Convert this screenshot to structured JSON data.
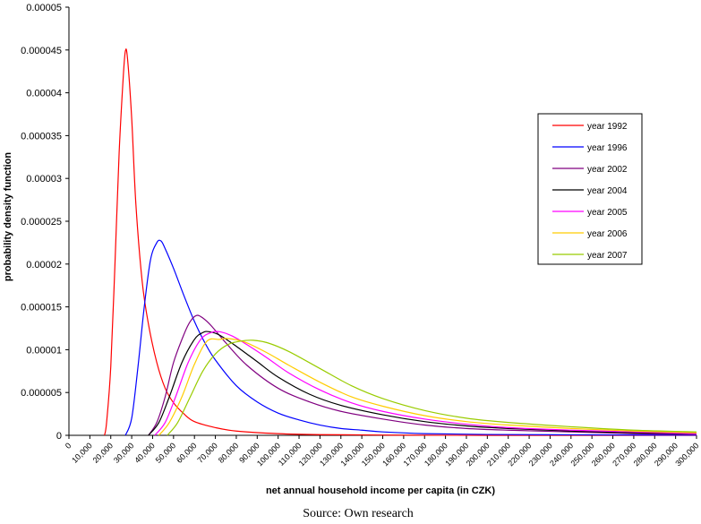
{
  "chart_data": {
    "type": "line",
    "title": "",
    "xlabel": "net annual household income per capita (in CZK)",
    "ylabel": "probability density function",
    "xlim": [
      0,
      300000
    ],
    "ylim": [
      0,
      5e-05
    ],
    "x_ticks": [
      0,
      10000,
      20000,
      30000,
      40000,
      50000,
      60000,
      70000,
      80000,
      90000,
      100000,
      110000,
      120000,
      130000,
      140000,
      150000,
      160000,
      170000,
      180000,
      190000,
      200000,
      210000,
      220000,
      230000,
      240000,
      250000,
      260000,
      270000,
      280000,
      290000,
      300000
    ],
    "x_tick_labels": [
      "0",
      "10,000",
      "20,000",
      "30,000",
      "40,000",
      "50,000",
      "60,000",
      "70,000",
      "80,000",
      "90,000",
      "100,000",
      "110,000",
      "120,000",
      "130,000",
      "140,000",
      "150,000",
      "160,000",
      "170,000",
      "180,000",
      "190,000",
      "200,000",
      "210,000",
      "220,000",
      "230,000",
      "240,000",
      "250,000",
      "260,000",
      "270,000",
      "280,000",
      "290,000",
      "300,000"
    ],
    "y_ticks": [
      0,
      5e-06,
      1e-05,
      1.5e-05,
      2e-05,
      2.5e-05,
      3e-05,
      3.5e-05,
      4e-05,
      4.5e-05,
      5e-05
    ],
    "y_tick_labels": [
      "0",
      "0.000005",
      "0.00001",
      "0.000015",
      "0.00002",
      "0.000025",
      "0.00003",
      "0.000035",
      "0.00004",
      "0.000045",
      "0.00005"
    ],
    "legend_position": "upper-right",
    "grid": false,
    "series": [
      {
        "name": "year 1992",
        "color": "#ff0000",
        "points": [
          [
            17000,
            0
          ],
          [
            18000,
            1.5e-06
          ],
          [
            20000,
            8e-06
          ],
          [
            22000,
            2e-05
          ],
          [
            24000,
            3.3e-05
          ],
          [
            26000,
            4.2e-05
          ],
          [
            27000,
            4.49e-05
          ],
          [
            28000,
            4.4e-05
          ],
          [
            30000,
            3.7e-05
          ],
          [
            32000,
            2.7e-05
          ],
          [
            35000,
            1.8e-05
          ],
          [
            38000,
            1.3e-05
          ],
          [
            42000,
            8.5e-06
          ],
          [
            46000,
            5.5e-06
          ],
          [
            50000,
            3.8e-06
          ],
          [
            55000,
            2.5e-06
          ],
          [
            60000,
            1.6e-06
          ],
          [
            70000,
            9e-07
          ],
          [
            80000,
            5e-07
          ],
          [
            100000,
            2e-07
          ],
          [
            120000,
            8e-08
          ],
          [
            150000,
            3e-08
          ],
          [
            200000,
            0
          ],
          [
            300000,
            0
          ]
        ]
      },
      {
        "name": "year 1996",
        "color": "#0000ff",
        "points": [
          [
            27000,
            0
          ],
          [
            30000,
            2e-06
          ],
          [
            33000,
            8e-06
          ],
          [
            36000,
            1.5e-05
          ],
          [
            39000,
            2.05e-05
          ],
          [
            42000,
            2.25e-05
          ],
          [
            44000,
            2.27e-05
          ],
          [
            46000,
            2.18e-05
          ],
          [
            50000,
            1.95e-05
          ],
          [
            55000,
            1.63e-05
          ],
          [
            60000,
            1.33e-05
          ],
          [
            65000,
            1.08e-05
          ],
          [
            70000,
            8.8e-06
          ],
          [
            80000,
            5.8e-06
          ],
          [
            90000,
            3.9e-06
          ],
          [
            100000,
            2.6e-06
          ],
          [
            110000,
            1.8e-06
          ],
          [
            120000,
            1.2e-06
          ],
          [
            130000,
            8e-07
          ],
          [
            140000,
            6e-07
          ],
          [
            150000,
            4e-07
          ],
          [
            170000,
            2e-07
          ],
          [
            200000,
            1e-07
          ],
          [
            250000,
            5e-08
          ],
          [
            300000,
            2e-08
          ]
        ]
      },
      {
        "name": "year 2002",
        "color": "#800080",
        "points": [
          [
            38000,
            0
          ],
          [
            42000,
            1.5e-06
          ],
          [
            46000,
            4.5e-06
          ],
          [
            50000,
            8.5e-06
          ],
          [
            55000,
            1.18e-05
          ],
          [
            58000,
            1.33e-05
          ],
          [
            61000,
            1.4e-05
          ],
          [
            64000,
            1.37e-05
          ],
          [
            68000,
            1.28e-05
          ],
          [
            75000,
            1.08e-05
          ],
          [
            85000,
            8.2e-06
          ],
          [
            100000,
            5.5e-06
          ],
          [
            115000,
            3.9e-06
          ],
          [
            130000,
            2.8e-06
          ],
          [
            150000,
            1.9e-06
          ],
          [
            170000,
            1.2e-06
          ],
          [
            190000,
            8e-07
          ],
          [
            210000,
            6e-07
          ],
          [
            240000,
            4e-07
          ],
          [
            270000,
            2e-07
          ],
          [
            300000,
            1e-07
          ]
        ]
      },
      {
        "name": "year 2004",
        "color": "#000000",
        "points": [
          [
            38000,
            0
          ],
          [
            43000,
            1.5e-06
          ],
          [
            48000,
            4.5e-06
          ],
          [
            54000,
            8.5e-06
          ],
          [
            60000,
            1.12e-05
          ],
          [
            64000,
            1.2e-05
          ],
          [
            67000,
            1.21e-05
          ],
          [
            72000,
            1.17e-05
          ],
          [
            80000,
            1.04e-05
          ],
          [
            90000,
            8.6e-06
          ],
          [
            100000,
            6.8e-06
          ],
          [
            115000,
            4.8e-06
          ],
          [
            130000,
            3.5e-06
          ],
          [
            150000,
            2.4e-06
          ],
          [
            170000,
            1.6e-06
          ],
          [
            190000,
            1.1e-06
          ],
          [
            210000,
            8e-07
          ],
          [
            240000,
            5e-07
          ],
          [
            270000,
            3e-07
          ],
          [
            300000,
            2e-07
          ]
        ]
      },
      {
        "name": "year 2005",
        "color": "#ff00ff",
        "points": [
          [
            41000,
            0
          ],
          [
            46000,
            1.5e-06
          ],
          [
            51000,
            4.5e-06
          ],
          [
            57000,
            8.5e-06
          ],
          [
            63000,
            1.12e-05
          ],
          [
            68000,
            1.2e-05
          ],
          [
            72000,
            1.21e-05
          ],
          [
            78000,
            1.16e-05
          ],
          [
            85000,
            1.06e-05
          ],
          [
            95000,
            9e-06
          ],
          [
            105000,
            7.3e-06
          ],
          [
            120000,
            5.3e-06
          ],
          [
            135000,
            3.8e-06
          ],
          [
            150000,
            2.8e-06
          ],
          [
            170000,
            1.9e-06
          ],
          [
            190000,
            1.3e-06
          ],
          [
            210000,
            9e-07
          ],
          [
            240000,
            6e-07
          ],
          [
            270000,
            4e-07
          ],
          [
            300000,
            2e-07
          ]
        ]
      },
      {
        "name": "year 2006",
        "color": "#ffcc00",
        "points": [
          [
            43000,
            0
          ],
          [
            48000,
            1.5e-06
          ],
          [
            54000,
            4.5e-06
          ],
          [
            60000,
            8.3e-06
          ],
          [
            66000,
            1.1e-05
          ],
          [
            72000,
            1.12e-05
          ],
          [
            76000,
            1.13e-05
          ],
          [
            84000,
            1.09e-05
          ],
          [
            95000,
            9.6e-06
          ],
          [
            105000,
            8.2e-06
          ],
          [
            120000,
            6.2e-06
          ],
          [
            135000,
            4.5e-06
          ],
          [
            150000,
            3.4e-06
          ],
          [
            170000,
            2.3e-06
          ],
          [
            190000,
            1.6e-06
          ],
          [
            210000,
            1.2e-06
          ],
          [
            240000,
            8e-07
          ],
          [
            270000,
            5e-07
          ],
          [
            300000,
            3e-07
          ]
        ]
      },
      {
        "name": "year 2007",
        "color": "#99cc00",
        "points": [
          [
            47000,
            0
          ],
          [
            52000,
            1.5e-06
          ],
          [
            58000,
            4.5e-06
          ],
          [
            64000,
            7.5e-06
          ],
          [
            70000,
            9.5e-06
          ],
          [
            76000,
            1.06e-05
          ],
          [
            82000,
            1.1e-05
          ],
          [
            88000,
            1.11e-05
          ],
          [
            95000,
            1.08e-05
          ],
          [
            105000,
            9.8e-06
          ],
          [
            120000,
            7.8e-06
          ],
          [
            135000,
            5.8e-06
          ],
          [
            150000,
            4.3e-06
          ],
          [
            170000,
            2.9e-06
          ],
          [
            190000,
            2e-06
          ],
          [
            210000,
            1.5e-06
          ],
          [
            240000,
            1e-06
          ],
          [
            270000,
            6e-07
          ],
          [
            300000,
            4e-07
          ]
        ]
      }
    ]
  },
  "footer": {
    "source": "Source: Own research"
  }
}
